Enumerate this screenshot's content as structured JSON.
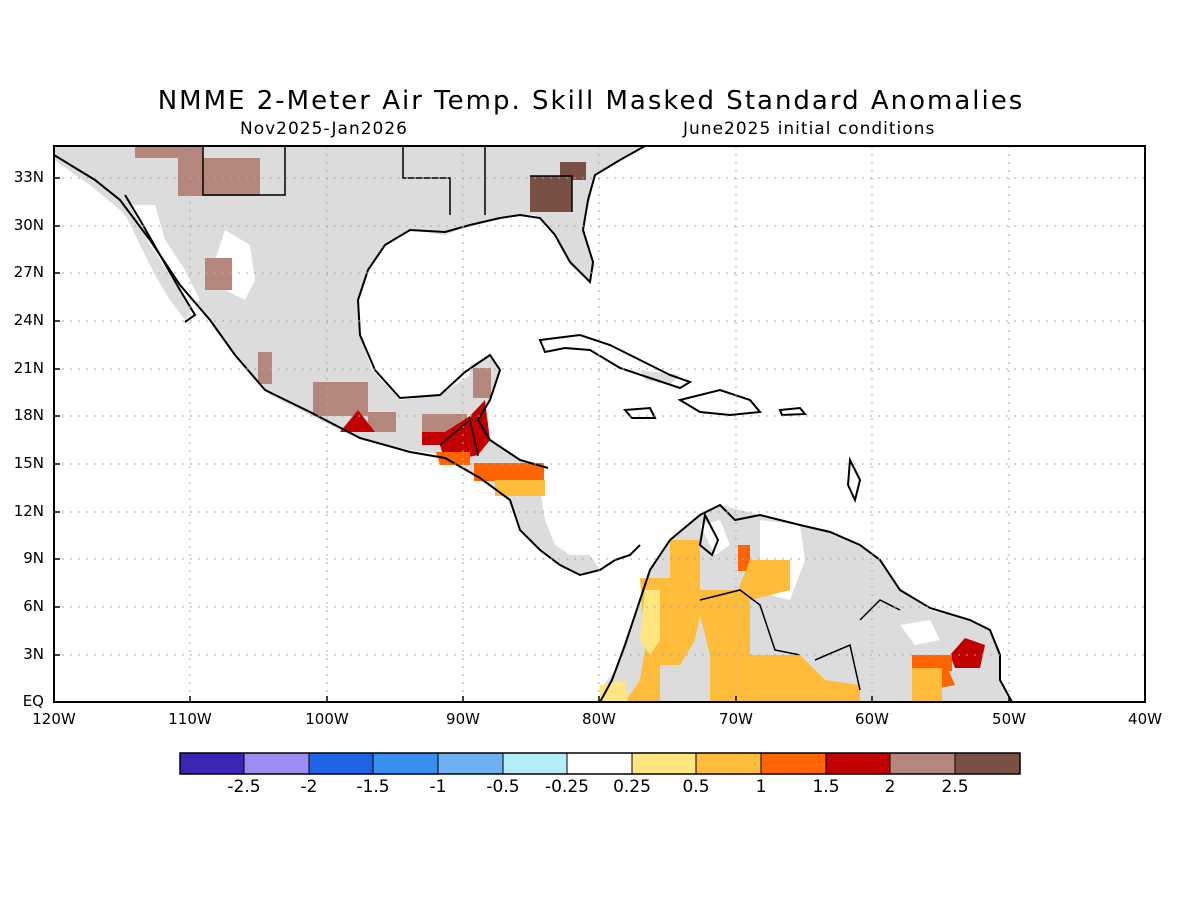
{
  "title": "NMME 2-Meter Air Temp. Skill Masked Standard Anomalies",
  "subtitle_left": "Nov2025-Jan2026",
  "subtitle_right": "June2025 initial conditions",
  "lat_labels": [
    "33N",
    "30N",
    "27N",
    "24N",
    "21N",
    "18N",
    "15N",
    "12N",
    "9N",
    "6N",
    "3N",
    "EQ"
  ],
  "lon_labels": [
    "120W",
    "110W",
    "100W",
    "90W",
    "80W",
    "70W",
    "60W",
    "50W",
    "40W"
  ],
  "colorbar": {
    "colors": [
      "#3a26b5",
      "#9f8cf2",
      "#1f63e6",
      "#3a8ef0",
      "#6fb0f2",
      "#b4ecf8",
      "#ffffff",
      "#ffe680",
      "#ffbb3a",
      "#ff6400",
      "#c20000",
      "#b5877c",
      "#7a5045"
    ],
    "labels": [
      "-2.5",
      "-2",
      "-1.5",
      "-1",
      "-0.5",
      "-0.25",
      "0.25",
      "0.5",
      "1",
      "1.5",
      "2",
      "2.5"
    ]
  },
  "map_colors": {
    "land_no_skill": "#dcdcdc",
    "ocean": "#ffffff",
    "grid": "#a8a8a8"
  }
}
